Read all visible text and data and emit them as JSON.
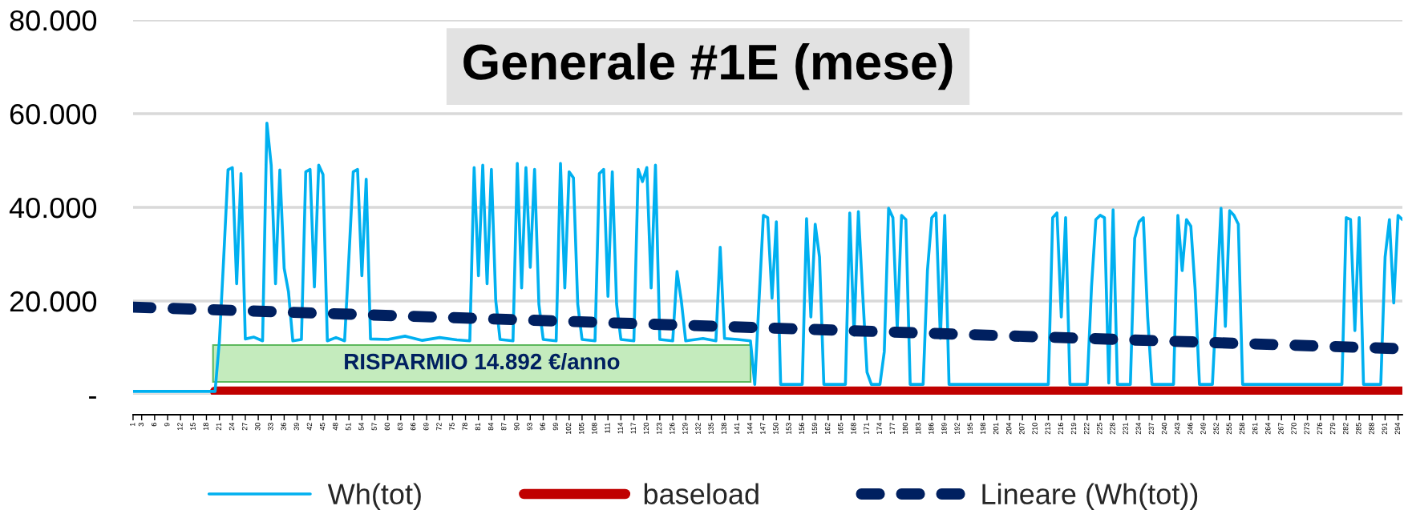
{
  "chart_data": {
    "type": "line",
    "title": "Generale #1E (mese)",
    "xlim": [
      1,
      295
    ],
    "xticks": [
      1,
      3,
      6,
      9,
      12,
      15,
      18,
      21,
      24,
      27,
      30,
      33,
      36,
      39,
      42,
      45,
      48,
      51,
      54,
      57,
      60,
      63,
      66,
      69,
      72,
      75,
      78,
      81,
      84,
      87,
      90,
      93,
      96,
      99,
      102,
      105,
      108,
      111,
      114,
      117,
      120,
      123,
      126,
      129,
      132,
      135,
      138,
      141,
      144,
      147,
      150,
      153,
      156,
      159,
      162,
      165,
      168,
      171,
      174,
      177,
      180,
      183,
      186,
      189,
      192,
      195,
      198,
      201,
      204,
      207,
      210,
      213,
      216,
      219,
      222,
      225,
      228,
      231,
      234,
      237,
      240,
      243,
      246,
      249,
      252,
      255,
      258,
      261,
      264,
      267,
      270,
      273,
      276,
      279,
      282,
      285,
      288,
      291,
      294
    ],
    "ylim": [
      0,
      80000
    ],
    "yticks": [
      {
        "value": 0,
        "label": "-"
      },
      {
        "value": 20000,
        "label": "20.000"
      },
      {
        "value": 40000,
        "label": "40.000"
      },
      {
        "value": 60000,
        "label": "60.000"
      },
      {
        "value": 80000,
        "label": "80.000"
      }
    ],
    "grid": "y",
    "legend": "bottom",
    "annotations": [
      "RISPARMIO 14.892 €/anno"
    ],
    "series": [
      {
        "name": "Wh(tot)",
        "color": "#00b0f0",
        "x": [
          1,
          20,
          21,
          22,
          23,
          24,
          25,
          26,
          27,
          29,
          31,
          32,
          33,
          34,
          35,
          36,
          37,
          38,
          40,
          41,
          42,
          43,
          44,
          45,
          46,
          48,
          50,
          51,
          52,
          53,
          54,
          55,
          56,
          60,
          64,
          68,
          72,
          76,
          79,
          80,
          81,
          82,
          83,
          84,
          85,
          86,
          89,
          90,
          91,
          92,
          93,
          94,
          95,
          96,
          99,
          100,
          101,
          102,
          103,
          104,
          105,
          108,
          109,
          110,
          111,
          112,
          113,
          114,
          117,
          118,
          119,
          120,
          121,
          122,
          123,
          126,
          127,
          128,
          129,
          133,
          136,
          137,
          138,
          141,
          144,
          145,
          147,
          148,
          149,
          150,
          151,
          153,
          156,
          157,
          158,
          159,
          160,
          161,
          166,
          167,
          168,
          169,
          170,
          171,
          172,
          174,
          175,
          176,
          177,
          178,
          179,
          180,
          181,
          184,
          185,
          186,
          187,
          188,
          189,
          190,
          200,
          213,
          214,
          215,
          216,
          217,
          218,
          222,
          223,
          224,
          225,
          226,
          227,
          228,
          229,
          232,
          233,
          234,
          235,
          236,
          237,
          242,
          243,
          244,
          245,
          246,
          247,
          248,
          251,
          252,
          253,
          254,
          255,
          256,
          257,
          258,
          270,
          281,
          282,
          283,
          284,
          285,
          286,
          290,
          291,
          292,
          293,
          294,
          295
        ],
        "values": [
          700,
          700,
          11500,
          29300,
          48000,
          48500,
          23700,
          47200,
          11900,
          12300,
          11500,
          58000,
          49000,
          23700,
          48000,
          27000,
          22000,
          11500,
          11800,
          47600,
          48100,
          23000,
          49000,
          47000,
          11500,
          12200,
          11500,
          29300,
          47600,
          48100,
          25400,
          46000,
          11900,
          11800,
          12500,
          11600,
          12200,
          11700,
          11500,
          48500,
          25400,
          49000,
          23700,
          48100,
          20200,
          11800,
          11500,
          49400,
          22800,
          48500,
          27200,
          48100,
          19300,
          11800,
          11500,
          49400,
          22800,
          47600,
          46300,
          19300,
          11800,
          11500,
          47200,
          48100,
          21000,
          47600,
          19300,
          11800,
          11500,
          48100,
          45500,
          48500,
          22800,
          49000,
          11800,
          11500,
          26300,
          20000,
          11500,
          12000,
          11500,
          31500,
          12000,
          11800,
          11500,
          2200,
          38300,
          37800,
          20600,
          36900,
          2200,
          2200,
          2200,
          37600,
          16600,
          36400,
          29400,
          2200,
          2200,
          38800,
          12700,
          39100,
          21500,
          4800,
          2200,
          2200,
          9200,
          39800,
          37800,
          14000,
          38300,
          37400,
          2200,
          2200,
          26500,
          37800,
          38800,
          12000,
          38300,
          2200,
          2200,
          2200,
          37800,
          38800,
          16600,
          37800,
          2200,
          2200,
          23000,
          37400,
          38300,
          37800,
          2500,
          39500,
          2200,
          2200,
          33400,
          36900,
          37800,
          16600,
          2200,
          2200,
          38300,
          26500,
          37400,
          36000,
          22500,
          2200,
          2200,
          20600,
          39800,
          14600,
          39300,
          38300,
          36400,
          2200,
          2200,
          2200,
          37800,
          37400,
          13700,
          37800,
          2200,
          2200,
          29400,
          37400,
          19600,
          38300,
          37400
        ]
      },
      {
        "name": "baseload",
        "color": "#c00000",
        "x": [
          20,
          295
        ],
        "values": [
          700,
          700
        ]
      },
      {
        "name": "Lineare (Wh(tot))",
        "color": "#002060",
        "line_style": "dashed",
        "x": [
          1,
          295
        ],
        "values": [
          18700,
          9800
        ]
      }
    ]
  }
}
